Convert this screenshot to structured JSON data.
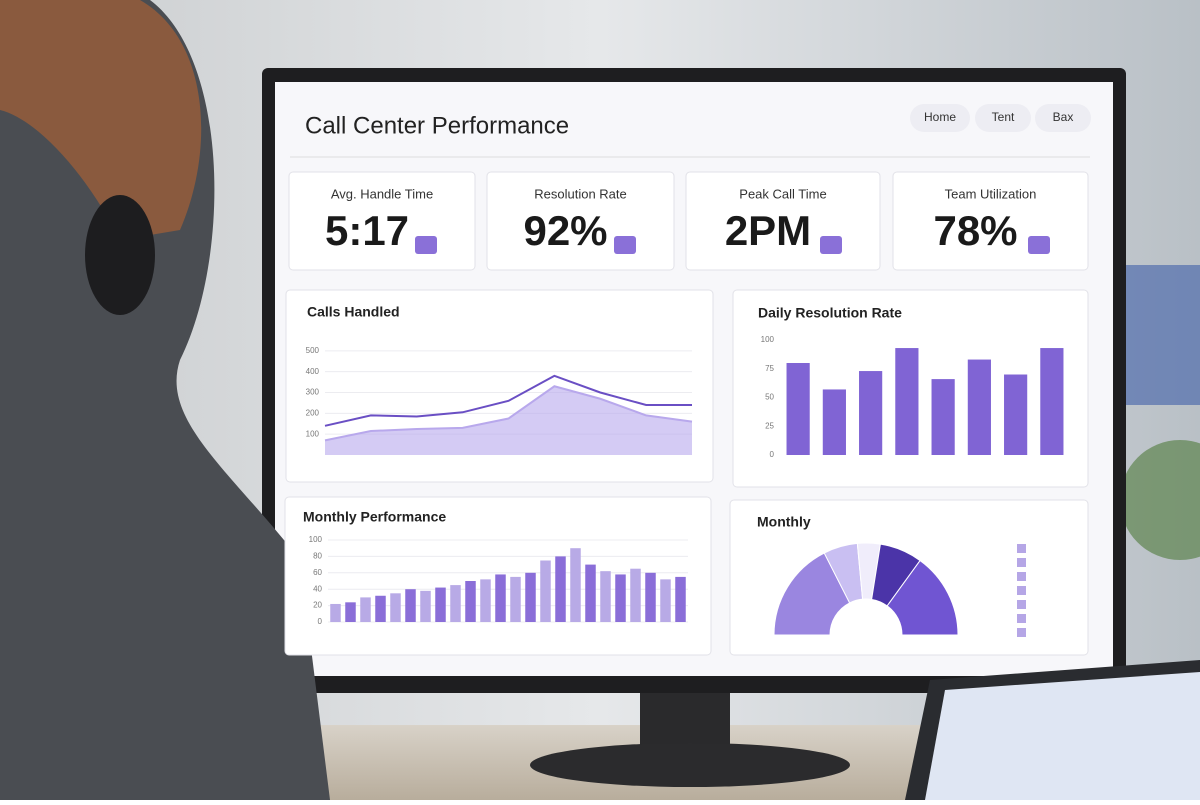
{
  "header": {
    "title": "Call Center Performance",
    "nav": [
      "Home",
      "Tent",
      "Bax"
    ]
  },
  "kpis": [
    {
      "label": "Avg. Handle Time",
      "value": "5:17"
    },
    {
      "label": "Resolution Rate",
      "value": "92%"
    },
    {
      "label": "Peak Call Time",
      "value": "2PM"
    },
    {
      "label": "Team Utilization",
      "value": "78%"
    }
  ],
  "calls_handled": {
    "title": "Calls Handled",
    "ylim": [
      0,
      600
    ],
    "yticks": [
      100,
      200,
      300,
      400,
      500
    ],
    "series": [
      {
        "color": "#6a4fc4",
        "values": [
          140,
          190,
          185,
          205,
          260,
          380,
          300,
          240,
          240
        ]
      },
      {
        "color": "#b8a8ec",
        "values": [
          70,
          115,
          125,
          130,
          175,
          330,
          270,
          190,
          160
        ]
      }
    ]
  },
  "daily_resolution": {
    "title": "Daily Resolution Rate",
    "color": "#8064d4",
    "ylim": [
      0,
      100
    ],
    "yticks": [
      0,
      25,
      50,
      75,
      100
    ],
    "values": [
      80,
      57,
      73,
      93,
      66,
      83,
      70,
      93
    ]
  },
  "monthly_performance": {
    "title": "Monthly Performance",
    "colors": [
      "#b8aae6",
      "#8a6ed8"
    ],
    "ylim": [
      0,
      100
    ],
    "yticks": [
      0,
      20,
      40,
      60,
      80,
      100
    ],
    "values": [
      22,
      24,
      30,
      32,
      35,
      40,
      38,
      42,
      45,
      50,
      52,
      58,
      55,
      60,
      75,
      80,
      90,
      70,
      62,
      58,
      65,
      60,
      52,
      55
    ]
  },
  "monthly_share": {
    "title": "Monthly",
    "values": [
      35,
      12,
      8,
      15,
      30
    ],
    "colors": [
      "#9a86e0",
      "#c9bff2",
      "#f0edfb",
      "#4b34a8",
      "#7055d2"
    ]
  }
}
